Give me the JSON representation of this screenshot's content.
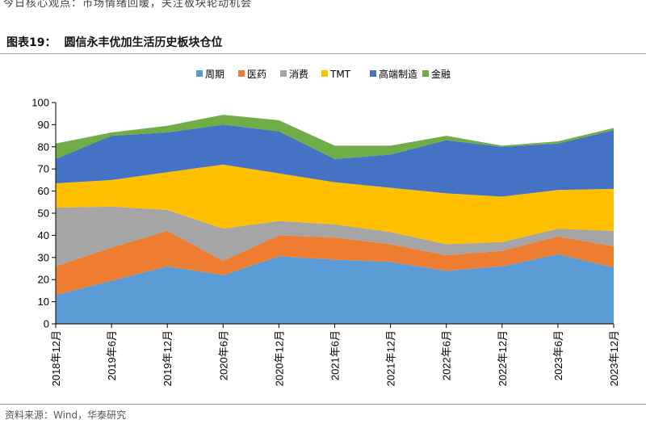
{
  "header": {
    "cut_text": "今日核心观点：市场情绪回暖，关注板块轮动机会"
  },
  "figure": {
    "label": "图表19：",
    "title": "圆信永丰优加生活历史板块仓位"
  },
  "source": "资料来源：Wind，华泰研究",
  "colors": {
    "周期": "#5b9bd5",
    "医药": "#ed7d31",
    "消费": "#a5a5a5",
    "TMT": "#ffc000",
    "高端制造": "#4472c4",
    "金融": "#70ad47"
  },
  "chart_data": {
    "type": "area",
    "stacked": true,
    "title": "圆信永丰优加生活历史板块仓位",
    "categories": [
      "2018年12月",
      "2019年6月",
      "2019年12月",
      "2020年6月",
      "2020年12月",
      "2021年6月",
      "2021年12月",
      "2022年6月",
      "2022年12月",
      "2023年6月",
      "2023年12月"
    ],
    "ylim": [
      0,
      100
    ],
    "yticks": [
      0,
      10,
      20,
      30,
      40,
      50,
      60,
      70,
      80,
      90,
      100
    ],
    "legend_position": "top",
    "series": [
      {
        "name": "周期",
        "values": [
          13,
          19.5,
          26,
          22,
          30.5,
          29,
          28,
          24,
          26,
          31.5,
          25.5
        ]
      },
      {
        "name": "医药",
        "values": [
          13,
          15,
          16,
          6.5,
          9.5,
          10,
          8,
          7,
          7,
          8,
          9.5
        ]
      },
      {
        "name": "消费",
        "values": [
          26.5,
          18.5,
          9.5,
          14.5,
          6.5,
          6,
          5.5,
          5,
          4,
          3.5,
          7
        ]
      },
      {
        "name": "TMT",
        "values": [
          11,
          12,
          17,
          29,
          21.5,
          19,
          20,
          23,
          20.5,
          17.5,
          19
        ]
      },
      {
        "name": "高端制造",
        "values": [
          11,
          20,
          18,
          18,
          19,
          10.5,
          15,
          24,
          22.5,
          21,
          26.5
        ]
      },
      {
        "name": "金融",
        "values": [
          7,
          1.5,
          3,
          4.5,
          5,
          6,
          4,
          2,
          0.5,
          1,
          1
        ]
      }
    ]
  }
}
